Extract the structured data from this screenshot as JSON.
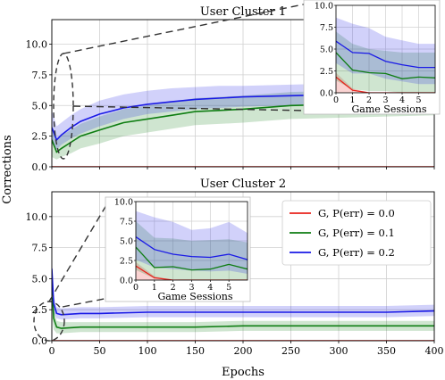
{
  "figure": {
    "ylabel": "Corrections",
    "xlabel": "Epochs"
  },
  "legend": [
    {
      "label": "G, P(err) = 0.0",
      "color": "#e8231c"
    },
    {
      "label": "G, P(err) = 0.1",
      "color": "#0e7d12"
    },
    {
      "label": "G, P(err) = 0.2",
      "color": "#1a1ae6"
    }
  ],
  "chart_data": [
    {
      "type": "line",
      "title": "User Cluster 1",
      "xlabel": "",
      "ylabel": "Corrections",
      "xlim": [
        0,
        400
      ],
      "ylim": [
        0,
        12
      ],
      "xticks": [
        0,
        50,
        100,
        150,
        200,
        250,
        300,
        350,
        400
      ],
      "yticks": [
        0.0,
        2.5,
        5.0,
        7.5,
        10.0
      ],
      "grid": true,
      "x": [
        0,
        5,
        10,
        20,
        30,
        50,
        75,
        100,
        125,
        150,
        175,
        200,
        250,
        300,
        350,
        400
      ],
      "series": [
        {
          "name": "G, P(err) = 0.0",
          "color": "#e8231c",
          "values": [
            0,
            0,
            0,
            0,
            0,
            0,
            0,
            0,
            0,
            0,
            0,
            0,
            0,
            0,
            0,
            0
          ],
          "lower": [
            0,
            0,
            0,
            0,
            0,
            0,
            0,
            0,
            0,
            0,
            0,
            0,
            0,
            0,
            0,
            0
          ],
          "upper": [
            0,
            0,
            0,
            0,
            0,
            0,
            0,
            0,
            0,
            0,
            0,
            0,
            0,
            0,
            0,
            0
          ]
        },
        {
          "name": "G, P(err) = 0.1",
          "color": "#0e7d12",
          "values": [
            2.2,
            1.2,
            1.5,
            2.0,
            2.5,
            3.0,
            3.6,
            3.9,
            4.2,
            4.5,
            4.6,
            4.7,
            5.0,
            5.1,
            5.2,
            5.3
          ],
          "lower": [
            0.8,
            0.6,
            0.8,
            1.1,
            1.5,
            1.9,
            2.5,
            2.8,
            3.1,
            3.4,
            3.5,
            3.6,
            3.9,
            4.0,
            4.1,
            4.2
          ],
          "upper": [
            3.4,
            2.2,
            2.6,
            3.0,
            3.5,
            4.1,
            4.7,
            5.0,
            5.3,
            5.6,
            5.7,
            5.8,
            6.1,
            6.2,
            6.3,
            6.4
          ]
        },
        {
          "name": "G, P(err) = 0.2",
          "color": "#1a1ae6",
          "values": [
            3.2,
            2.2,
            2.6,
            3.2,
            3.7,
            4.3,
            4.8,
            5.1,
            5.3,
            5.5,
            5.6,
            5.7,
            5.8,
            5.9,
            5.9,
            6.0
          ],
          "lower": [
            1.9,
            1.4,
            1.8,
            2.3,
            2.7,
            3.3,
            3.9,
            4.3,
            4.5,
            4.7,
            4.8,
            4.9,
            5.0,
            5.1,
            5.1,
            5.2
          ],
          "upper": [
            4.6,
            3.3,
            3.6,
            4.2,
            4.7,
            5.4,
            5.9,
            6.2,
            6.4,
            6.5,
            6.6,
            6.6,
            6.7,
            6.8,
            6.8,
            6.9
          ]
        }
      ],
      "inset": {
        "xlabel": "Game Sessions",
        "xlim": [
          0,
          6
        ],
        "ylim": [
          0,
          10
        ],
        "xticks": [
          0,
          1,
          2,
          3,
          4,
          5
        ],
        "yticks": [
          0.0,
          2.5,
          5.0,
          7.5,
          10.0
        ],
        "x": [
          0,
          1,
          2,
          3,
          4,
          5,
          6
        ],
        "series": [
          {
            "name": "G, P(err) = 0.0",
            "color": "#e8231c",
            "values": [
              1.8,
              0.3,
              0,
              0,
              0,
              0,
              0
            ],
            "lower": [
              0,
              0,
              0,
              0,
              0,
              0,
              0
            ],
            "upper": [
              2.3,
              0.5,
              0,
              0,
              0,
              0,
              0
            ]
          },
          {
            "name": "G, P(err) = 0.1",
            "color": "#0e7d12",
            "values": [
              4.6,
              2.6,
              2.3,
              2.2,
              1.6,
              1.8,
              1.7
            ],
            "lower": [
              1.4,
              0.4,
              0.2,
              0.2,
              0.0,
              0.0,
              0.0
            ],
            "upper": [
              7.0,
              5.6,
              5.0,
              4.8,
              4.6,
              4.6,
              4.6
            ]
          },
          {
            "name": "G, P(err) = 0.2",
            "color": "#1a1ae6",
            "values": [
              5.9,
              4.6,
              4.5,
              3.6,
              3.2,
              2.9,
              2.9
            ],
            "lower": [
              3.4,
              2.2,
              2.2,
              1.6,
              1.3,
              1.0,
              1.0
            ],
            "upper": [
              8.6,
              7.9,
              7.4,
              6.4,
              6.0,
              5.6,
              5.6
            ]
          }
        ]
      }
    },
    {
      "type": "line",
      "title": "User Cluster 2",
      "xlabel": "Epochs",
      "ylabel": "Corrections",
      "xlim": [
        0,
        400
      ],
      "ylim": [
        0,
        12
      ],
      "xticks": [
        0,
        50,
        100,
        150,
        200,
        250,
        300,
        350,
        400
      ],
      "yticks": [
        0.0,
        2.5,
        5.0,
        7.5,
        10.0
      ],
      "grid": true,
      "legend_position": "top-right",
      "x": [
        0,
        2,
        5,
        10,
        30,
        50,
        100,
        150,
        200,
        250,
        300,
        350,
        400
      ],
      "series": [
        {
          "name": "G, P(err) = 0.0",
          "color": "#e8231c",
          "values": [
            0,
            0,
            0,
            0,
            0,
            0,
            0,
            0,
            0,
            0,
            0,
            0,
            0
          ],
          "lower": [
            0,
            0,
            0,
            0,
            0,
            0,
            0,
            0,
            0,
            0,
            0,
            0,
            0
          ],
          "upper": [
            0,
            0,
            0,
            0,
            0,
            0,
            0,
            0,
            0,
            0,
            0,
            0,
            0
          ]
        },
        {
          "name": "G, P(err) = 0.1",
          "color": "#0e7d12",
          "values": [
            4.5,
            1.8,
            1.1,
            1.0,
            1.1,
            1.1,
            1.1,
            1.1,
            1.2,
            1.2,
            1.2,
            1.2,
            1.2
          ],
          "lower": [
            2.0,
            0.9,
            0.6,
            0.6,
            0.7,
            0.7,
            0.7,
            0.7,
            0.8,
            0.8,
            0.8,
            0.8,
            0.8
          ],
          "upper": [
            6.0,
            2.8,
            1.6,
            1.5,
            1.5,
            1.5,
            1.5,
            1.5,
            1.6,
            1.6,
            1.6,
            1.6,
            1.6
          ]
        },
        {
          "name": "G, P(err) = 0.2",
          "color": "#1a1ae6",
          "values": [
            5.8,
            3.0,
            2.2,
            2.1,
            2.2,
            2.2,
            2.3,
            2.3,
            2.3,
            2.3,
            2.3,
            2.3,
            2.4
          ],
          "lower": [
            3.8,
            2.3,
            1.8,
            1.7,
            1.8,
            1.8,
            1.9,
            1.9,
            1.9,
            1.9,
            1.9,
            1.9,
            2.0
          ],
          "upper": [
            6.8,
            3.6,
            2.7,
            2.6,
            2.7,
            2.7,
            2.8,
            2.8,
            2.8,
            2.8,
            2.8,
            2.8,
            2.9
          ]
        }
      ],
      "inset": {
        "xlabel": "Game Sessions",
        "xlim": [
          0,
          6
        ],
        "ylim": [
          0,
          10
        ],
        "xticks": [
          0,
          1,
          2,
          3,
          4,
          5
        ],
        "yticks": [
          0.0,
          2.5,
          5.0,
          7.5,
          10.0
        ],
        "x": [
          0,
          1,
          2,
          3,
          4,
          5,
          6
        ],
        "series": [
          {
            "name": "G, P(err) = 0.0",
            "color": "#e8231c",
            "values": [
              1.8,
              0.3,
              0,
              0,
              0,
              0,
              0
            ],
            "lower": [
              0,
              0,
              0,
              0,
              0,
              0,
              0
            ],
            "upper": [
              2.3,
              0.5,
              0,
              0,
              0,
              0,
              0
            ]
          },
          {
            "name": "G, P(err) = 0.1",
            "color": "#0e7d12",
            "values": [
              4.2,
              1.6,
              1.7,
              1.3,
              1.4,
              2.0,
              1.4
            ],
            "lower": [
              1.3,
              0.2,
              0.1,
              0.0,
              0.0,
              0.0,
              0.0
            ],
            "upper": [
              7.5,
              5.4,
              5.3,
              5.0,
              5.1,
              5.2,
              4.8
            ]
          },
          {
            "name": "G, P(err) = 0.2",
            "color": "#1a1ae6",
            "values": [
              5.5,
              3.9,
              3.3,
              3.0,
              2.9,
              3.3,
              2.6
            ],
            "lower": [
              2.6,
              1.6,
              1.4,
              1.2,
              1.1,
              1.2,
              0.8
            ],
            "upper": [
              8.8,
              8.0,
              7.4,
              6.4,
              6.6,
              7.4,
              6.0
            ]
          }
        ]
      }
    }
  ]
}
